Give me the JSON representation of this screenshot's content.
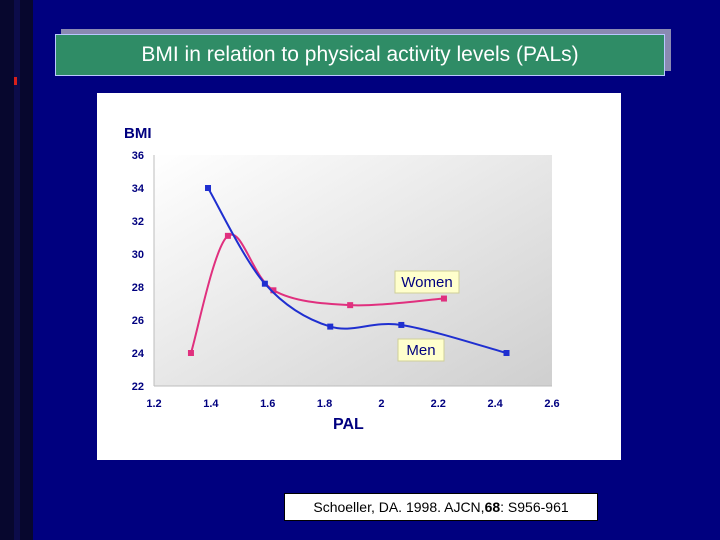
{
  "slide": {
    "title": "BMI in relation to physical activity levels (PALs)",
    "citation": {
      "prefix": "Schoeller, DA. 1998. AJCN, ",
      "volume": "68",
      "suffix": ": S956-961"
    }
  },
  "colors": {
    "background": "#00007f",
    "title_fill": "#2f8c66",
    "women_series": "#e0307e",
    "men_series": "#1f2fd0"
  },
  "chart_data": {
    "type": "line",
    "xlabel": "PAL",
    "ylabel": "BMI",
    "xlim": [
      1.2,
      2.6
    ],
    "ylim": [
      22,
      36
    ],
    "xticks": [
      "1.2",
      "1.4",
      "1.6",
      "1.8",
      "2",
      "2.2",
      "2.4",
      "2.6"
    ],
    "yticks": [
      "36",
      "34",
      "32",
      "30",
      "28",
      "26",
      "24",
      "22"
    ],
    "grid": false,
    "series": [
      {
        "name": "Women",
        "x": [
          1.33,
          1.46,
          1.62,
          1.89,
          2.22
        ],
        "y": [
          24.0,
          31.1,
          27.8,
          26.9,
          27.3
        ]
      },
      {
        "name": "Men",
        "x": [
          1.39,
          1.59,
          1.82,
          2.07,
          2.44
        ],
        "y": [
          34.0,
          28.2,
          25.6,
          25.7,
          24.0
        ]
      }
    ],
    "labels": [
      "Women",
      "Men"
    ]
  }
}
